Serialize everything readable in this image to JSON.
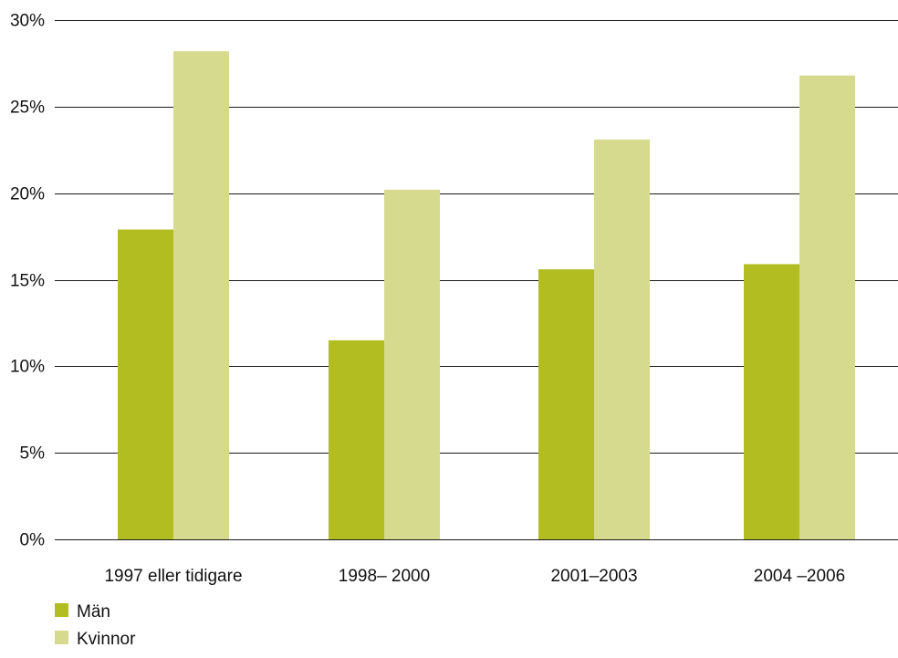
{
  "chart_data": {
    "type": "bar",
    "categories": [
      "1997 eller tidigare",
      "1998– 2000",
      "2001–2003",
      "2004 –2006"
    ],
    "series": [
      {
        "name": "Män",
        "color": "#b1bd20",
        "values": [
          17.9,
          11.5,
          15.6,
          15.9
        ]
      },
      {
        "name": "Kvinnor",
        "color": "#d6da8f",
        "values": [
          28.2,
          20.2,
          23.1,
          26.8
        ]
      }
    ],
    "yticks": [
      "0%",
      "5%",
      "10%",
      "15%",
      "20%",
      "25%",
      "30%"
    ],
    "ylim": [
      0,
      30
    ],
    "grid": true,
    "legend_position": "bottom-left",
    "gridline_color": "#1a1a1a"
  }
}
